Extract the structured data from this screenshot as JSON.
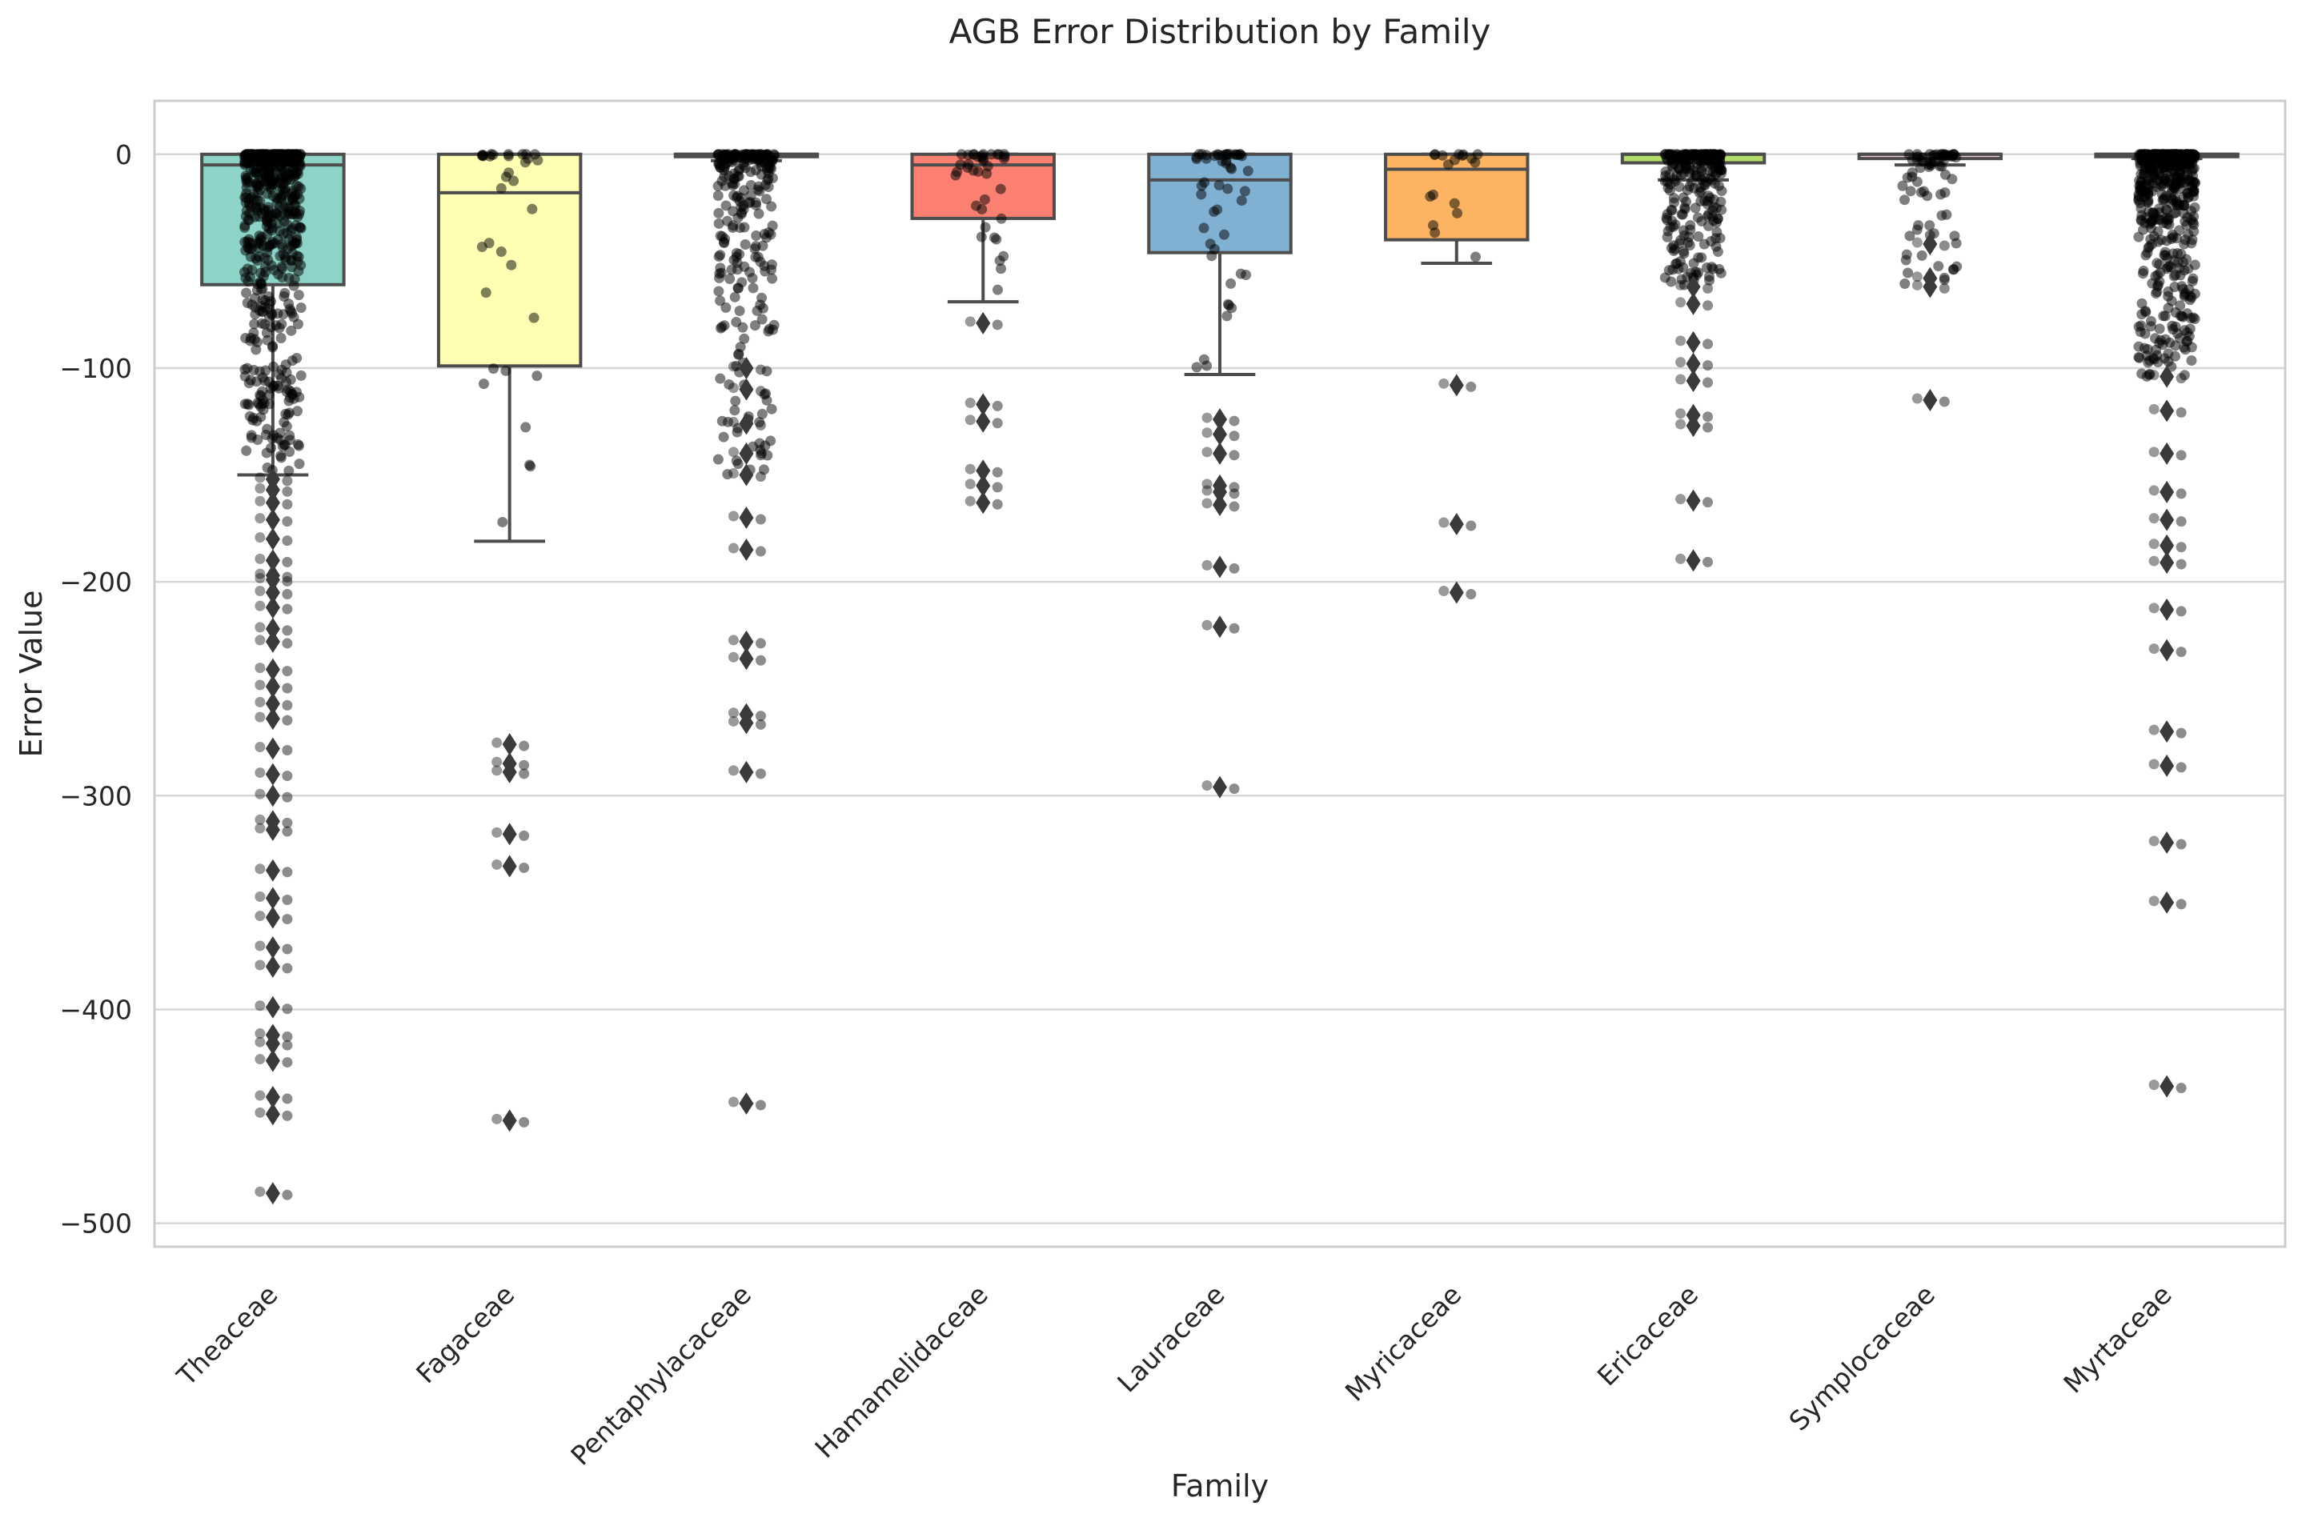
{
  "chart_data": {
    "type": "box",
    "title": "AGB Error Distribution by Family",
    "xlabel": "Family",
    "ylabel": "Error Value",
    "ylim": [
      -511,
      25
    ],
    "yticks": [
      0,
      -100,
      -200,
      -300,
      -400,
      -500
    ],
    "ytick_labels": [
      "0",
      "−100",
      "−200",
      "−300",
      "−400",
      "−500"
    ],
    "grid": true,
    "categories": [
      "Theaceae",
      "Fagaceae",
      "Pentaphylacaceae",
      "Hamamelidaceae",
      "Lauraceae",
      "Myricaceae",
      "Ericaceae",
      "Symplocaceae",
      "Myrtaceae"
    ],
    "boxes": [
      {
        "name": "Theaceae",
        "color": "#8dd3c7",
        "q1": -61,
        "median": -5,
        "q3": 0,
        "whisker_low": -150,
        "whisker_high": 0,
        "outliers": [
          -152,
          -157,
          -163,
          -171,
          -180,
          -190,
          -197,
          -199,
          -205,
          -212,
          -222,
          -228,
          -241,
          -249,
          -257,
          -264,
          -278,
          -290,
          -300,
          -312,
          -316,
          -335,
          -348,
          -357,
          -371,
          -380,
          -399,
          -412,
          -416,
          -424,
          -441,
          -449,
          -486
        ],
        "n_jitter": 620,
        "jitter_min": -150
      },
      {
        "name": "Fagaceae",
        "color": "#ffffb3",
        "q1": -99,
        "median": -18,
        "q3": 0,
        "whisker_low": -181,
        "whisker_high": 0,
        "outliers": [
          -276,
          -285,
          -289,
          -318,
          -333,
          -452
        ],
        "n_jitter": 34,
        "jitter_min": -181
      },
      {
        "name": "Pentaphylacaceae",
        "color": "#bebada",
        "q1": -1,
        "median": 0,
        "q3": 0,
        "whisker_low": -3,
        "whisker_high": 0,
        "outliers": [
          -100,
          -110,
          -126,
          -140,
          -150,
          -170,
          -185,
          -228,
          -236,
          -262,
          -266,
          -289,
          -444
        ],
        "n_jitter": 260,
        "jitter_min": -150
      },
      {
        "name": "Hamamelidaceae",
        "color": "#fb8072",
        "q1": -30,
        "median": -5,
        "q3": 0,
        "whisker_low": -69,
        "whisker_high": 0,
        "outliers": [
          -79,
          -117,
          -125,
          -148,
          -155,
          -163
        ],
        "n_jitter": 38,
        "jitter_min": -69
      },
      {
        "name": "Lauraceae",
        "color": "#80b1d3",
        "q1": -46,
        "median": -12,
        "q3": 0,
        "whisker_low": -103,
        "whisker_high": 0,
        "outliers": [
          -124,
          -131,
          -140,
          -155,
          -158,
          -164,
          -193,
          -221,
          -296
        ],
        "n_jitter": 50,
        "jitter_min": -103
      },
      {
        "name": "Myricaceae",
        "color": "#fdb462",
        "q1": -40,
        "median": -7,
        "q3": 0,
        "whisker_low": -51,
        "whisker_high": 0,
        "outliers": [
          -108,
          -173,
          -205
        ],
        "n_jitter": 18,
        "jitter_min": -51
      },
      {
        "name": "Ericaceae",
        "color": "#b3de69",
        "q1": -4,
        "median": 0,
        "q3": 0,
        "whisker_low": -12,
        "whisker_high": 0,
        "outliers": [
          -62,
          -70,
          -88,
          -98,
          -106,
          -122,
          -127,
          -162,
          -190
        ],
        "n_jitter": 260,
        "jitter_min": -62
      },
      {
        "name": "Symplocaceae",
        "color": "#fccde5",
        "q1": -2,
        "median": 0,
        "q3": 0,
        "whisker_low": -5,
        "whisker_high": 0,
        "outliers": [
          -42,
          -58,
          -62,
          -115
        ],
        "n_jitter": 70,
        "jitter_min": -62
      },
      {
        "name": "Myrtaceae",
        "color": "#d9d9d9",
        "q1": -1,
        "median": 0,
        "q3": 0,
        "whisker_low": -2,
        "whisker_high": 0,
        "outliers": [
          -104,
          -120,
          -140,
          -158,
          -171,
          -183,
          -191,
          -213,
          -232,
          -270,
          -286,
          -322,
          -350,
          -436
        ],
        "n_jitter": 560,
        "jitter_min": -104
      }
    ]
  }
}
